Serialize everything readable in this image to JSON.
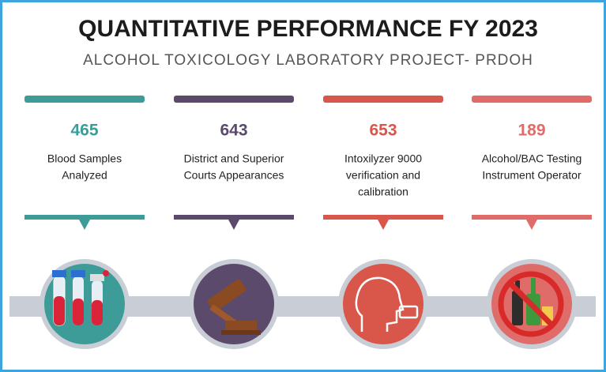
{
  "header": {
    "title": "QUANTITATIVE PERFORMANCE FY 2023",
    "subtitle": "ALCOHOL TOXICOLOGY LABORATORY PROJECT- PRDOH"
  },
  "items": [
    {
      "value": 465,
      "color": "#3d9c98",
      "label": [
        "Blood Samples",
        "Analyzed"
      ]
    },
    {
      "value": 643,
      "color": "#5b4a6b",
      "label": [
        "District and Superior",
        "Courts Appearances"
      ]
    },
    {
      "value": 653,
      "color": "#d8574a",
      "label": [
        "Intoxilyzer 9000",
        "verification and",
        "calibration"
      ]
    },
    {
      "value": 189,
      "color": "#e06c6a",
      "label": [
        "Alcohol/BAC Testing",
        "Instrument Operator"
      ]
    }
  ]
}
